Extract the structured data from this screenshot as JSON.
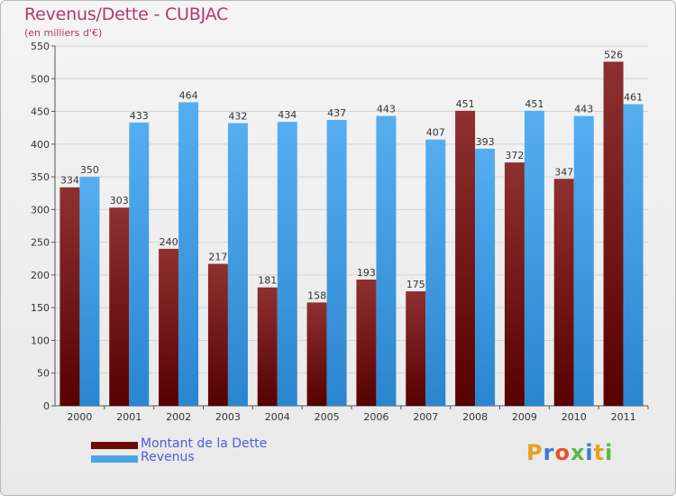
{
  "chart_data": {
    "type": "bar",
    "title": "Revenus/Dette - CUBJAC",
    "subtitle": "(en milliers d'€)",
    "xlabel": "",
    "ylabel": "",
    "ylim": [
      0,
      550
    ],
    "yticks": [
      0,
      50,
      100,
      150,
      200,
      250,
      300,
      350,
      400,
      450,
      500,
      550
    ],
    "grid": true,
    "categories": [
      "2000",
      "2001",
      "2002",
      "2003",
      "2004",
      "2005",
      "2006",
      "2007",
      "2008",
      "2009",
      "2010",
      "2011"
    ],
    "series": [
      {
        "name": "Montant de la Dette",
        "color": "#7a1010",
        "values": [
          334,
          303,
          240,
          217,
          181,
          158,
          193,
          175,
          451,
          372,
          347,
          526
        ]
      },
      {
        "name": "Revenus",
        "color": "#4aa3e8",
        "values": [
          350,
          433,
          464,
          432,
          434,
          437,
          443,
          407,
          393,
          451,
          443,
          461
        ]
      }
    ],
    "legend_position": "bottom-left"
  },
  "legend": {
    "items": [
      {
        "label": "Montant de la Dette",
        "color": "#6b0a0a"
      },
      {
        "label": "Revenus",
        "color": "#4aa3e8"
      }
    ]
  },
  "brand": {
    "name": "Proxiti"
  }
}
